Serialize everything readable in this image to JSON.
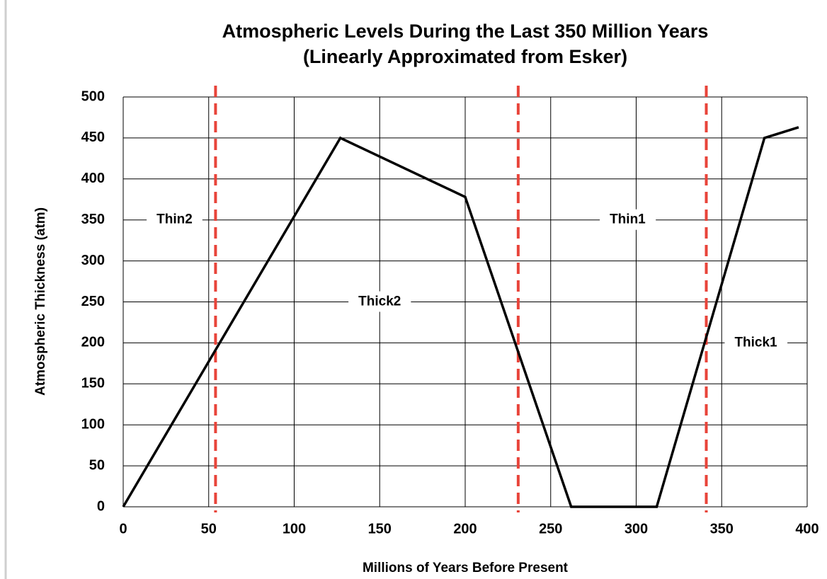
{
  "chart_data": {
    "type": "line",
    "title": "Atmospheric Levels During the Last 350 Million Years",
    "subtitle": "(Linearly Approximated from Esker)",
    "xlabel": "Millions of Years Before Present",
    "ylabel": "Atmospheric Thickness (atm)",
    "x": [
      0,
      127,
      200,
      262,
      312,
      375,
      395
    ],
    "values": [
      0,
      450,
      378,
      0,
      0,
      450,
      463
    ],
    "color": "#000000",
    "xlim": [
      0,
      400
    ],
    "xticks": [
      0,
      50,
      100,
      150,
      200,
      250,
      300,
      350,
      400
    ],
    "ylim": [
      0,
      500
    ],
    "yticks": [
      0,
      50,
      100,
      150,
      200,
      250,
      300,
      350,
      400,
      450,
      500
    ],
    "grid": true,
    "vlines": [
      54,
      231,
      341
    ],
    "vline_color": "#e8443a",
    "annotations": [
      {
        "text": "Thin2",
        "x": 30,
        "y": 350
      },
      {
        "text": "Thick2",
        "x": 150,
        "y": 250
      },
      {
        "text": "Thin1",
        "x": 295,
        "y": 350
      },
      {
        "text": "Thick1",
        "x": 370,
        "y": 200
      }
    ]
  }
}
